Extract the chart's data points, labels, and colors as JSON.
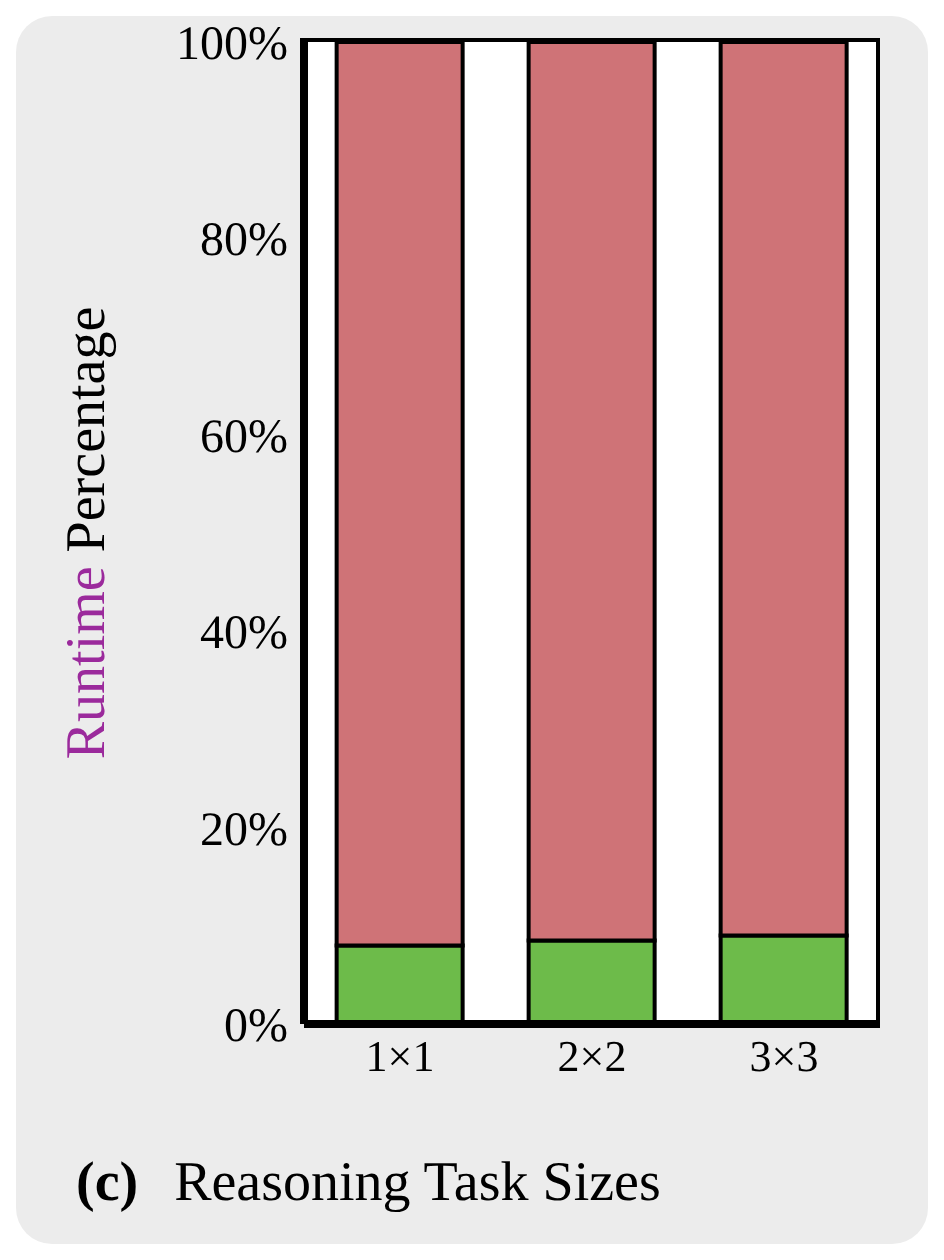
{
  "chart_data": {
    "type": "bar",
    "stacked": true,
    "xlabel": "Reasoning Task Sizes",
    "ylabel": "Runtime Percentage",
    "annotations": [
      "(c)"
    ],
    "categories": [
      "1×1",
      "2×2",
      "3×3"
    ],
    "series": [
      {
        "color": "#6dbb4a",
        "values": [
          8,
          8.5,
          9
        ]
      },
      {
        "color": "#cf7377",
        "values": [
          92,
          91.5,
          91
        ]
      }
    ],
    "ylim": [
      0,
      100
    ],
    "yticks": [
      {
        "value": 0,
        "label": "0%"
      },
      {
        "value": 20,
        "label": "20%"
      },
      {
        "value": 40,
        "label": "40%"
      },
      {
        "value": 60,
        "label": "60%"
      },
      {
        "value": 80,
        "label": "80%"
      },
      {
        "value": 100,
        "label": "100%"
      }
    ],
    "grid": false,
    "legend": false
  }
}
